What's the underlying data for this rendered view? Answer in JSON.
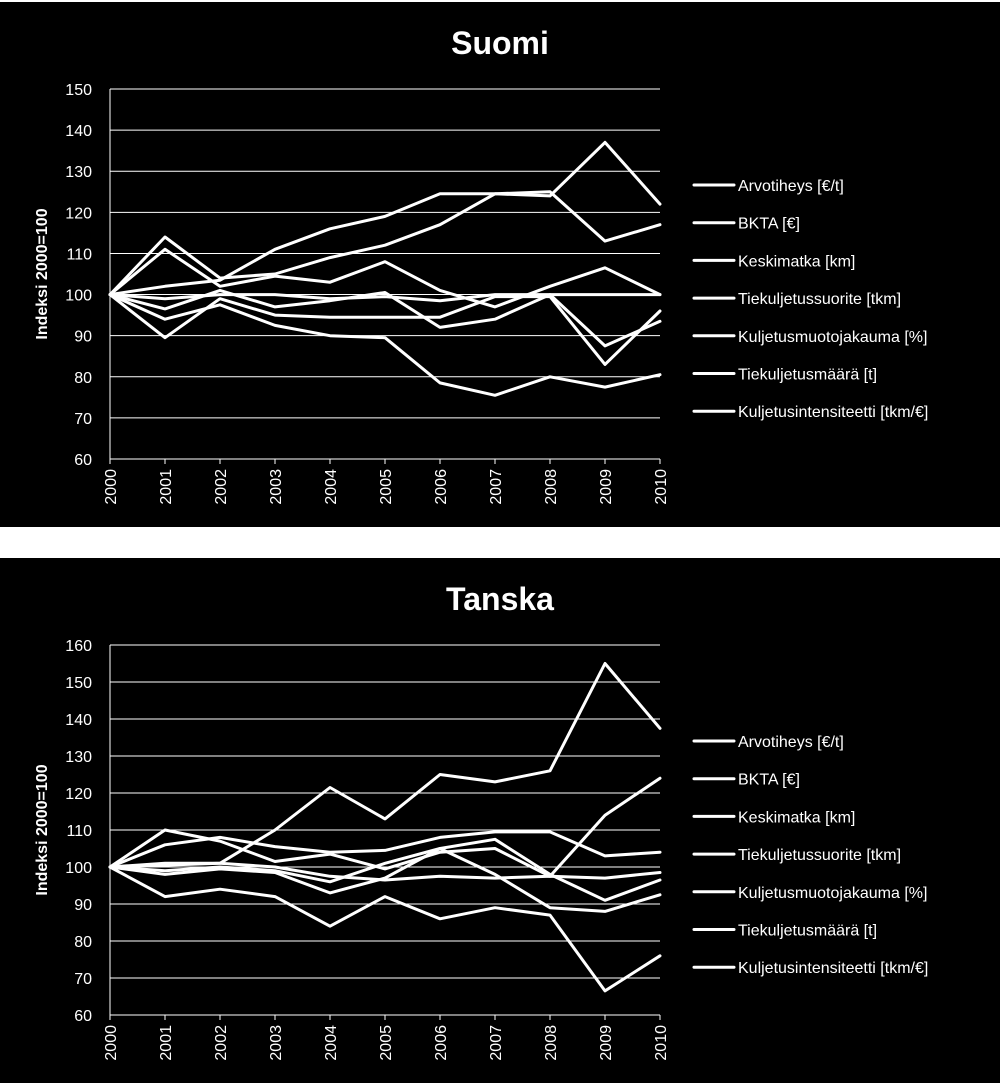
{
  "colors": {
    "background": "#000000",
    "line": "#ffffff",
    "separator": "#ffffff"
  },
  "chart_data": [
    {
      "type": "line",
      "title": "Suomi",
      "ylabel": "Indeksi 2000=100",
      "xlabel": "",
      "ylim": [
        60,
        150
      ],
      "yticks": [
        60,
        70,
        80,
        90,
        100,
        110,
        120,
        130,
        140,
        150
      ],
      "grid": true,
      "legend": "right",
      "categories": [
        "2000",
        "2001",
        "2002",
        "2003",
        "2004",
        "2005",
        "2006",
        "2007",
        "2008",
        "2009",
        "2010"
      ],
      "series": [
        {
          "name": "Arvotiheys [€/t]",
          "values": [
            100,
            114,
            104,
            105,
            109,
            112,
            117,
            124.5,
            124,
            137,
            122
          ]
        },
        {
          "name": "BKTA [€]",
          "values": [
            100,
            102,
            103.5,
            111,
            116,
            119,
            124.5,
            124.5,
            125,
            113,
            117
          ]
        },
        {
          "name": "Keskimatka [km]",
          "values": [
            100,
            111,
            102,
            104.5,
            103,
            108,
            101,
            97,
            102,
            106.5,
            100
          ]
        },
        {
          "name": "Tiekuljetussuorite [tkm]",
          "values": [
            100,
            99,
            100,
            100,
            99,
            99.5,
            98.5,
            100,
            100,
            100,
            100
          ]
        },
        {
          "name": "Kuljetusmuotojakauma [%]",
          "values": [
            100,
            96.5,
            101,
            97,
            98.5,
            100.5,
            92,
            94,
            100,
            87.5,
            93.5
          ]
        },
        {
          "name": "Tiekuljetusmäärä [t]",
          "values": [
            100,
            94,
            97.5,
            92.5,
            90,
            89.5,
            78.5,
            75.5,
            80,
            77.5,
            80.5
          ]
        },
        {
          "name": "Kuljetusintensiteetti [tkm/€]",
          "values": [
            100,
            89.5,
            99,
            95,
            94.5,
            94.5,
            94.5,
            99.5,
            99.5,
            83,
            96
          ]
        }
      ]
    },
    {
      "type": "line",
      "title": "Tanska",
      "ylabel": "Indeksi 2000=100",
      "xlabel": "",
      "ylim": [
        60,
        160
      ],
      "yticks": [
        60,
        70,
        80,
        90,
        100,
        110,
        120,
        130,
        140,
        150,
        160
      ],
      "grid": true,
      "legend": "right",
      "categories": [
        "2000",
        "2001",
        "2002",
        "2003",
        "2004",
        "2005",
        "2006",
        "2007",
        "2008",
        "2009",
        "2010"
      ],
      "series": [
        {
          "name": "Arvotiheys [€/t]",
          "values": [
            100,
            100.5,
            101,
            110,
            121.5,
            113,
            125,
            123,
            126,
            155,
            137.5
          ]
        },
        {
          "name": "BKTA [€]",
          "values": [
            100,
            106,
            108,
            105.5,
            104,
            104.5,
            108,
            109.5,
            109.5,
            103,
            104
          ]
        },
        {
          "name": "Keskimatka [km]",
          "values": [
            100,
            110,
            107,
            101.5,
            103.5,
            99.5,
            104,
            105,
            97.5,
            114,
            124
          ]
        },
        {
          "name": "Tiekuljetussuorite [tkm]",
          "values": [
            100,
            101,
            101,
            100,
            97.5,
            96.5,
            97.5,
            97,
            97.5,
            97,
            98.5
          ]
        },
        {
          "name": "Kuljetusmuotojakauma [%]",
          "values": [
            100,
            98,
            99.5,
            98.5,
            93,
            97,
            105,
            107.5,
            98,
            91,
            96.5
          ]
        },
        {
          "name": "Tiekuljetusmäärä [t]",
          "values": [
            100,
            99,
            100,
            99,
            96,
            101,
            105,
            98,
            89,
            88,
            92.5
          ]
        },
        {
          "name": "Kuljetusintensiteetti [tkm/€]",
          "values": [
            100,
            92,
            94,
            92,
            84,
            92,
            86,
            89,
            87,
            66.5,
            76
          ]
        }
      ]
    }
  ]
}
